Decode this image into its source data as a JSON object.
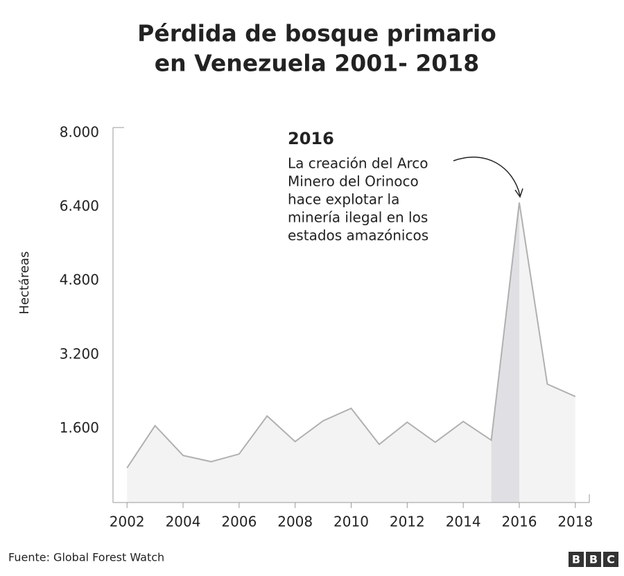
{
  "chart_data": {
    "type": "area",
    "title": [
      "Pérdida de bosque primario",
      "en Venezuela 2001- 2018"
    ],
    "ylabel": "Hectáreas",
    "x": [
      2002,
      2003,
      2004,
      2005,
      2006,
      2007,
      2008,
      2009,
      2010,
      2011,
      2012,
      2013,
      2014,
      2015,
      2016,
      2017,
      2018
    ],
    "values": [
      750,
      1665,
      1020,
      885,
      1050,
      1875,
      1320,
      1770,
      2040,
      1260,
      1740,
      1305,
      1755,
      1350,
      6495,
      2565,
      2295
    ],
    "color": "#b0b0b0",
    "fill": "#f3f3f3",
    "highlight": [
      2015,
      2016
    ],
    "highlight_color": "#e0e0e4",
    "xlim": [
      2001.5,
      2018.5
    ],
    "xticks": [
      2002,
      2004,
      2006,
      2008,
      2010,
      2012,
      2014,
      2016,
      2018
    ],
    "ylim": [
      0,
      8000
    ],
    "yticks": [
      {
        "value": 1600,
        "label": "1.600"
      },
      {
        "value": 3200,
        "label": "3.200"
      },
      {
        "value": 4800,
        "label": "4.800"
      },
      {
        "value": 6400,
        "label": "6.400"
      },
      {
        "value": 8000,
        "label": "8.000"
      }
    ],
    "annotation": {
      "title": "2016",
      "lines": [
        "La creación del Arco",
        "Minero del Orinoco",
        "hace explotar la",
        "minería ilegal en los",
        "estados amazónicos"
      ]
    },
    "source": "Fuente: Global Forest Watch",
    "logo": [
      "B",
      "B",
      "C"
    ]
  }
}
